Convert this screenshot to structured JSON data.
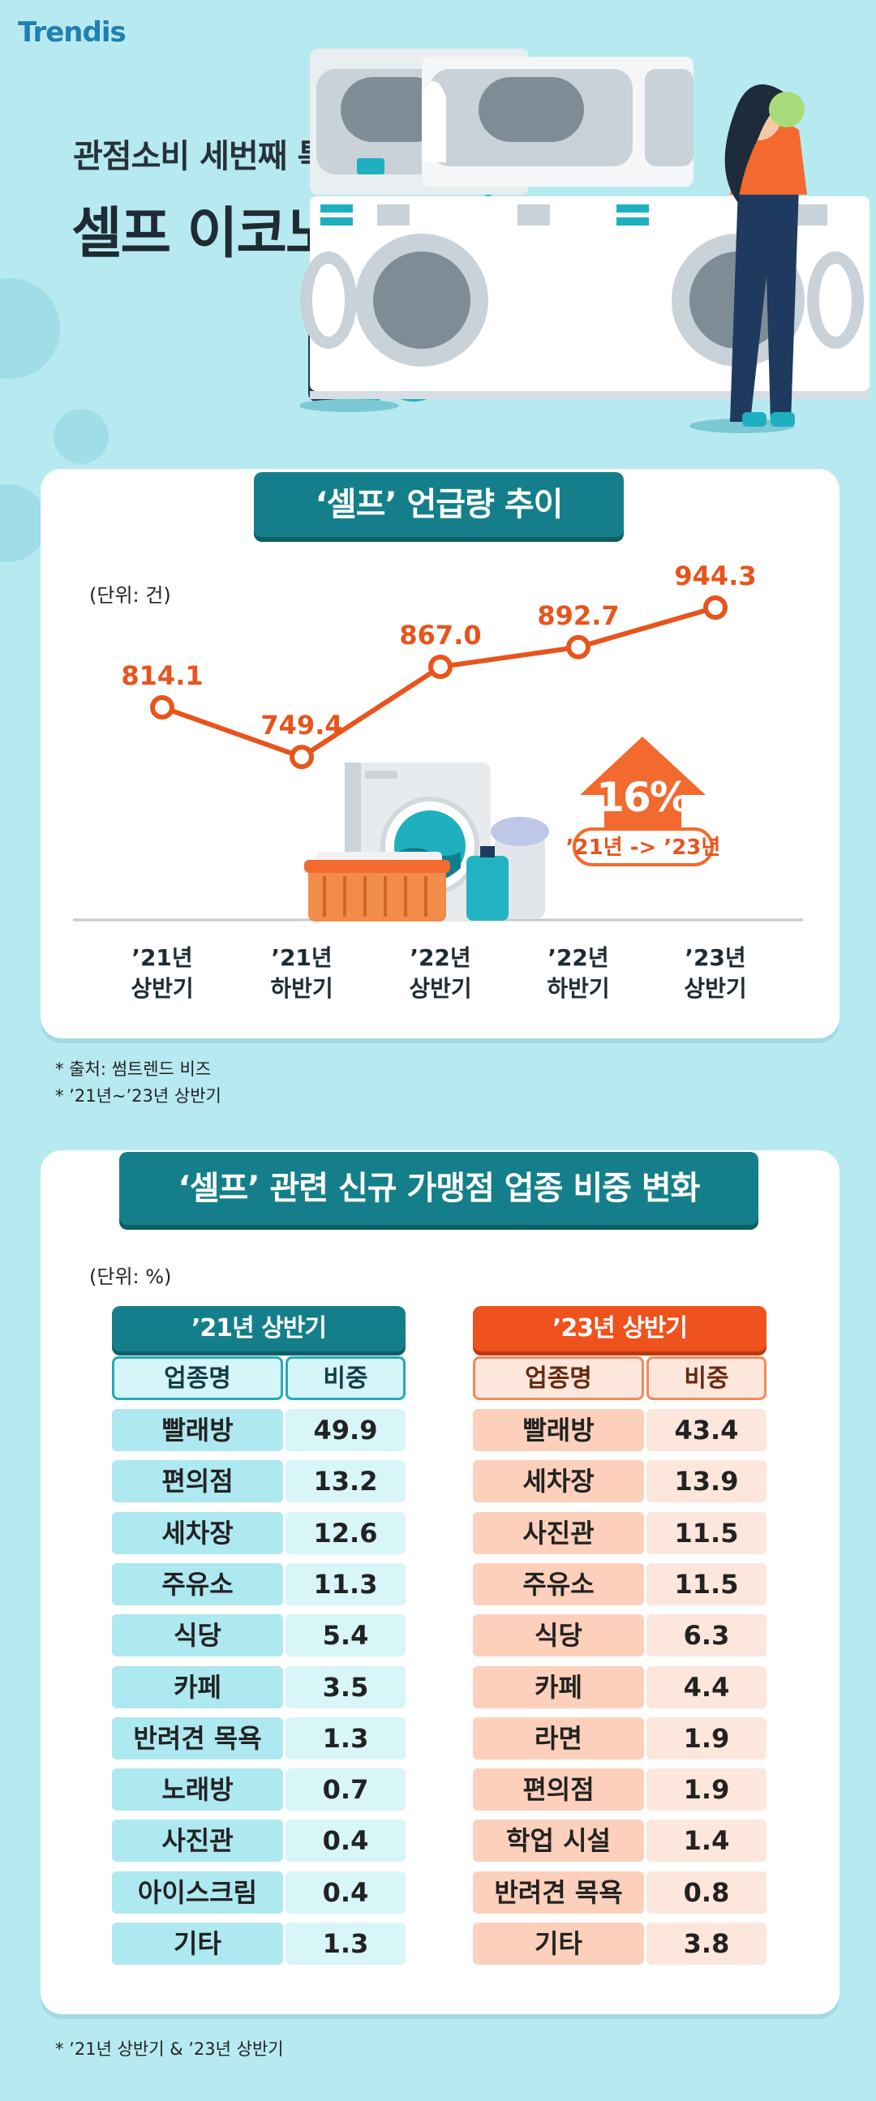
{
  "brand": {
    "logo_text": "Trendis"
  },
  "hero": {
    "subtitle": "관점소비 세번째 특징",
    "title": "셀프 이코노미"
  },
  "chart_data": [
    {
      "type": "line",
      "title": "‘셀프’ 언급량 추이",
      "unit_label": "(단위: 건)",
      "categories": [
        [
          "’21년",
          "상반기"
        ],
        [
          "’21년",
          "하반기"
        ],
        [
          "’22년",
          "상반기"
        ],
        [
          "’22년",
          "하반기"
        ],
        [
          "’23년",
          "상반기"
        ]
      ],
      "values": [
        814.1,
        749.4,
        867.0,
        892.7,
        944.3
      ],
      "value_labels": [
        "814.1",
        "749.4",
        "867.0",
        "892.7",
        "944.3"
      ],
      "annotation": {
        "value": "16%",
        "label": "’21년 -> ’23년"
      },
      "line_color": "#e8541c"
    },
    {
      "type": "table",
      "title": "‘셀프’ 관련 신규 가맹점 업종 비중 변화",
      "unit_label": "(단위: %)",
      "tables": [
        {
          "period": "’21년 상반기",
          "color": "#147f8a",
          "headers": [
            "업종명",
            "비중"
          ],
          "rows": [
            [
              "빨래방",
              "49.9"
            ],
            [
              "편의점",
              "13.2"
            ],
            [
              "세차장",
              "12.6"
            ],
            [
              "주유소",
              "11.3"
            ],
            [
              "식당",
              "5.4"
            ],
            [
              "카페",
              "3.5"
            ],
            [
              "반려견 목욕",
              "1.3"
            ],
            [
              "노래방",
              "0.7"
            ],
            [
              "사진관",
              "0.4"
            ],
            [
              "아이스크림",
              "0.4"
            ],
            [
              "기타",
              "1.3"
            ]
          ]
        },
        {
          "period": "’23년 상반기",
          "color": "#f0521e",
          "headers": [
            "업종명",
            "비중"
          ],
          "rows": [
            [
              "빨래방",
              "43.4"
            ],
            [
              "세차장",
              "13.9"
            ],
            [
              "사진관",
              "11.5"
            ],
            [
              "주유소",
              "11.5"
            ],
            [
              "식당",
              "6.3"
            ],
            [
              "카페",
              "4.4"
            ],
            [
              "라면",
              "1.9"
            ],
            [
              "편의점",
              "1.9"
            ],
            [
              "학업 시설",
              "1.4"
            ],
            [
              "반려견 목욕",
              "0.8"
            ],
            [
              "기타",
              "3.8"
            ]
          ]
        }
      ]
    }
  ],
  "notes": {
    "source": "*  출처: 썸트렌드 비즈",
    "period": "*  ’21년~’23년 상반기",
    "period2": "*  ’21년 상반기 & ’23년 상반기"
  },
  "colors": {
    "background": "#b7eaf0",
    "teal": "#147f8a",
    "orange": "#f0521e"
  }
}
